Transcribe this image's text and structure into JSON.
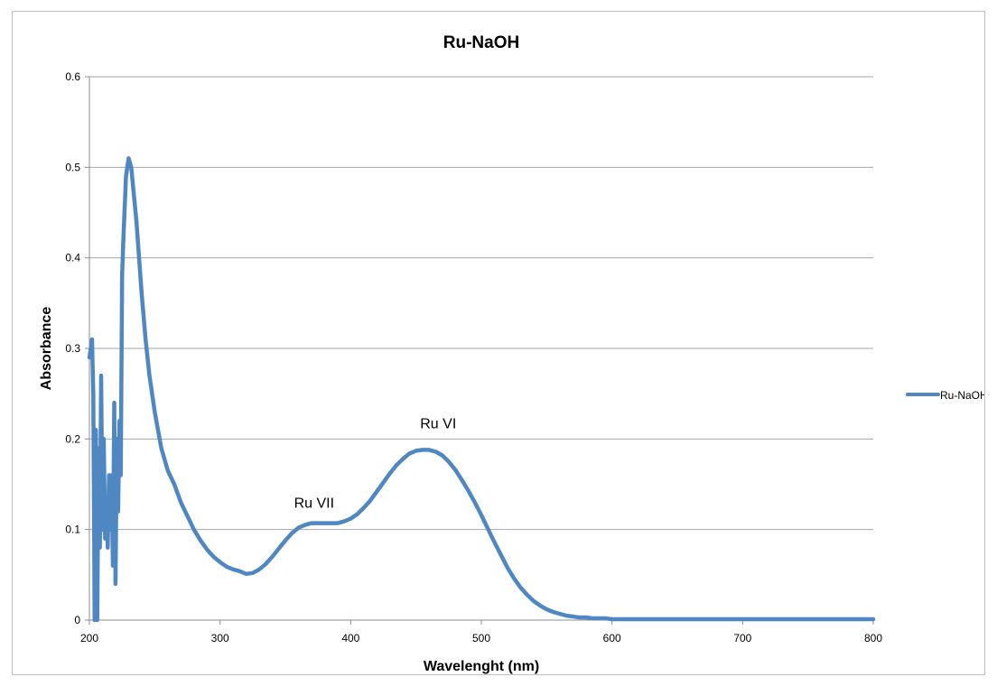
{
  "chart_data": {
    "type": "line",
    "title": "Ru-NaOH",
    "xlabel": "Wavelenght (nm)",
    "ylabel": "Absorbance",
    "xlim": [
      200,
      800
    ],
    "ylim": [
      0,
      0.6
    ],
    "x_ticks": [
      200,
      300,
      400,
      500,
      600,
      700,
      800
    ],
    "y_ticks": [
      0,
      0.1,
      0.2,
      0.3,
      0.4,
      0.5,
      0.6
    ],
    "y_tick_labels": [
      "0",
      "0.1",
      "0.2",
      "0.3",
      "0.4",
      "0.5",
      "0.6"
    ],
    "grid": "horizontal major gridlines",
    "legend_position": "right",
    "colors": {
      "series": "#4f87c2",
      "grid": "#a6a6a6",
      "axis": "#8c8c8c",
      "text": "#000000"
    },
    "series": [
      {
        "name": "Ru-NaOH",
        "x": [
          200,
          202,
          203,
          204,
          205,
          206,
          207,
          208,
          209,
          210,
          211,
          212,
          213,
          214,
          215,
          216,
          217,
          218,
          219,
          220,
          221,
          222,
          223,
          224,
          225,
          226,
          228,
          230,
          232,
          234,
          236,
          238,
          240,
          243,
          246,
          250,
          255,
          260,
          265,
          270,
          275,
          280,
          285,
          290,
          295,
          300,
          305,
          310,
          315,
          320,
          325,
          330,
          335,
          340,
          345,
          350,
          355,
          360,
          365,
          370,
          375,
          380,
          385,
          390,
          395,
          400,
          405,
          410,
          415,
          420,
          425,
          430,
          435,
          440,
          445,
          450,
          455,
          460,
          465,
          470,
          475,
          480,
          485,
          490,
          495,
          500,
          505,
          510,
          515,
          520,
          525,
          530,
          535,
          540,
          545,
          550,
          555,
          560,
          565,
          570,
          575,
          580,
          585,
          590,
          595,
          600,
          610,
          620,
          630,
          640,
          650,
          660,
          680,
          700,
          720,
          740,
          760,
          780,
          800
        ],
        "y": [
          0.29,
          0.31,
          0.25,
          0.0,
          0.21,
          0.0,
          0.19,
          0.08,
          0.27,
          0.1,
          0.2,
          0.09,
          0.13,
          0.08,
          0.16,
          0.1,
          0.16,
          0.06,
          0.24,
          0.04,
          0.2,
          0.12,
          0.22,
          0.16,
          0.38,
          0.42,
          0.49,
          0.51,
          0.5,
          0.47,
          0.44,
          0.4,
          0.36,
          0.31,
          0.27,
          0.23,
          0.19,
          0.165,
          0.15,
          0.13,
          0.115,
          0.1,
          0.088,
          0.078,
          0.07,
          0.064,
          0.059,
          0.056,
          0.054,
          0.051,
          0.052,
          0.056,
          0.062,
          0.07,
          0.079,
          0.088,
          0.096,
          0.102,
          0.105,
          0.107,
          0.107,
          0.107,
          0.107,
          0.107,
          0.109,
          0.112,
          0.117,
          0.124,
          0.132,
          0.142,
          0.152,
          0.162,
          0.171,
          0.178,
          0.184,
          0.187,
          0.188,
          0.188,
          0.186,
          0.182,
          0.175,
          0.166,
          0.155,
          0.143,
          0.13,
          0.116,
          0.101,
          0.086,
          0.072,
          0.058,
          0.046,
          0.036,
          0.028,
          0.021,
          0.016,
          0.012,
          0.009,
          0.007,
          0.005,
          0.004,
          0.003,
          0.003,
          0.002,
          0.002,
          0.002,
          0.001,
          0.001,
          0.001,
          0.001,
          0.001,
          0.001,
          0.001,
          0.001,
          0.001,
          0.001,
          0.001,
          0.001,
          0.001,
          0.001
        ]
      }
    ],
    "annotations": [
      {
        "text": "Ru VII",
        "x": 372,
        "y": 0.124
      },
      {
        "text": "Ru VI",
        "x": 467,
        "y": 0.212
      }
    ]
  }
}
